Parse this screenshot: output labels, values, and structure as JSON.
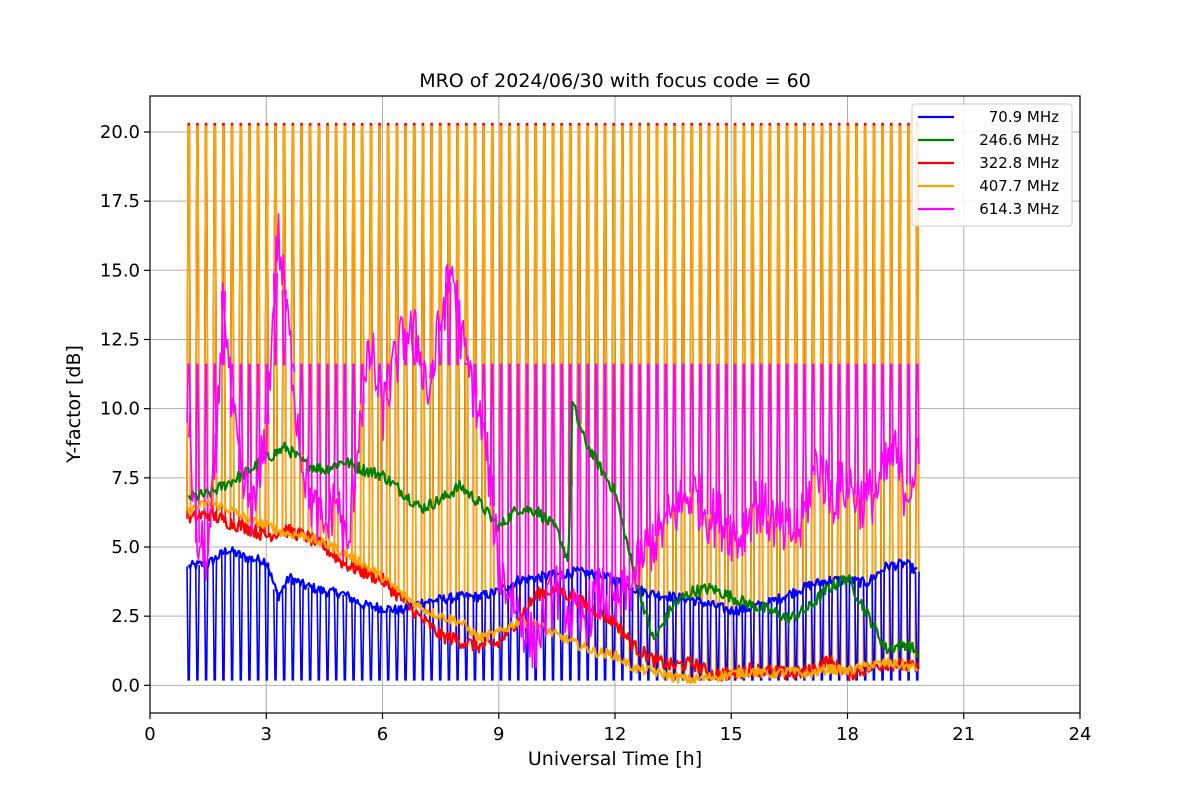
{
  "chart_data": {
    "type": "line",
    "title": "MRO of 2024/06/30 with focus code = 60",
    "xlabel": "Universal Time [h]",
    "ylabel": "Y-factor [dB]",
    "xlim": [
      0,
      24
    ],
    "ylim": [
      -1.0,
      21.3
    ],
    "xticks": [
      0,
      3,
      6,
      9,
      12,
      15,
      18,
      21,
      24
    ],
    "xtick_labels": [
      "0",
      "3",
      "6",
      "9",
      "12",
      "15",
      "18",
      "21",
      "24"
    ],
    "yticks": [
      0.0,
      2.5,
      5.0,
      7.5,
      10.0,
      12.5,
      15.0,
      17.5,
      20.0
    ],
    "ytick_labels": [
      "0.0",
      "2.5",
      "5.0",
      "7.5",
      "10.0",
      "12.5",
      "15.0",
      "17.5",
      "20.0"
    ],
    "grid": true,
    "legend_position": "top-right",
    "calibration_spikes": {
      "start_h": 1.0,
      "end_h": 19.8,
      "count": 85,
      "peak_values": {
        "70.9 MHz": 0.2,
        "246.6 MHz": 20.2,
        "322.8 MHz": 20.3,
        "407.7 MHz": 20.2,
        "614.3 MHz": 11.6
      }
    },
    "series": [
      {
        "name": " 70.9 MHz",
        "color": "#0000ff",
        "x": [
          1.0,
          1.5,
          2.0,
          2.5,
          3.0,
          3.3,
          3.6,
          4.0,
          4.5,
          5.0,
          5.5,
          6.0,
          6.5,
          7.0,
          7.5,
          8.0,
          8.5,
          9.0,
          9.5,
          10.0,
          10.5,
          11.0,
          11.5,
          12.0,
          12.5,
          13.0,
          13.5,
          14.0,
          14.5,
          15.0,
          15.5,
          16.0,
          16.5,
          17.0,
          17.5,
          18.0,
          18.5,
          19.0,
          19.5,
          19.8
        ],
        "y": [
          4.3,
          4.4,
          4.9,
          4.6,
          4.5,
          3.2,
          3.9,
          3.6,
          3.4,
          3.3,
          2.9,
          2.8,
          2.7,
          3.0,
          3.1,
          3.2,
          3.2,
          3.4,
          3.8,
          3.9,
          4.0,
          4.1,
          4.0,
          3.8,
          3.5,
          3.3,
          3.2,
          3.1,
          2.9,
          2.7,
          2.8,
          3.0,
          3.3,
          3.6,
          3.8,
          3.8,
          3.7,
          4.3,
          4.4,
          4.1
        ]
      },
      {
        "name": "246.6 MHz",
        "color": "#008000",
        "x": [
          1.0,
          1.5,
          2.0,
          2.5,
          3.0,
          3.5,
          4.0,
          4.5,
          5.0,
          5.5,
          6.0,
          6.5,
          7.0,
          7.5,
          8.0,
          8.5,
          9.0,
          9.5,
          10.0,
          10.5,
          10.8,
          10.9,
          11.2,
          11.6,
          12.0,
          12.5,
          13.0,
          13.5,
          14.0,
          14.5,
          15.0,
          15.5,
          16.0,
          16.5,
          17.0,
          17.5,
          18.0,
          18.5,
          19.0,
          19.5,
          19.8
        ],
        "y": [
          6.8,
          6.9,
          7.3,
          7.7,
          8.2,
          8.6,
          8.0,
          7.8,
          8.1,
          7.8,
          7.6,
          7.0,
          6.4,
          6.7,
          7.2,
          6.6,
          5.7,
          6.4,
          6.3,
          5.6,
          4.5,
          10.2,
          8.9,
          7.9,
          7.0,
          4.0,
          1.6,
          2.9,
          3.4,
          3.5,
          3.2,
          2.9,
          2.7,
          2.4,
          2.8,
          3.5,
          3.9,
          2.6,
          1.3,
          1.5,
          1.2
        ]
      },
      {
        "name": "322.8 MHz",
        "color": "#ff0000",
        "x": [
          1.0,
          1.5,
          2.0,
          2.5,
          3.0,
          3.5,
          4.0,
          4.5,
          5.0,
          5.5,
          6.0,
          6.5,
          7.0,
          7.5,
          8.0,
          8.5,
          9.0,
          9.5,
          10.0,
          10.5,
          11.0,
          11.5,
          12.0,
          12.5,
          13.0,
          13.5,
          14.0,
          14.5,
          15.0,
          15.5,
          16.0,
          16.5,
          17.0,
          17.5,
          18.0,
          18.5,
          19.0,
          19.5,
          19.8
        ],
        "y": [
          6.0,
          6.2,
          5.9,
          5.7,
          5.4,
          5.6,
          5.4,
          5.0,
          4.4,
          4.1,
          3.8,
          3.1,
          2.4,
          1.8,
          1.6,
          1.4,
          1.5,
          2.4,
          3.3,
          3.5,
          3.1,
          2.7,
          2.3,
          1.4,
          0.9,
          0.7,
          0.8,
          0.4,
          0.4,
          0.6,
          0.5,
          0.4,
          0.5,
          0.9,
          0.4,
          0.6,
          0.8,
          0.7,
          0.6
        ]
      },
      {
        "name": "407.7 MHz",
        "color": "#ffa500",
        "x": [
          1.0,
          1.5,
          2.0,
          2.5,
          3.0,
          3.5,
          4.0,
          4.5,
          5.0,
          5.5,
          6.0,
          6.5,
          7.0,
          7.5,
          8.0,
          8.5,
          9.0,
          9.5,
          10.0,
          10.5,
          11.0,
          11.5,
          12.0,
          12.5,
          13.0,
          13.5,
          14.0,
          14.5,
          15.0,
          15.5,
          16.0,
          16.5,
          17.0,
          17.5,
          18.0,
          18.5,
          19.0,
          19.5,
          19.8
        ],
        "y": [
          6.3,
          6.6,
          6.4,
          6.0,
          5.8,
          5.5,
          5.4,
          5.1,
          4.8,
          4.4,
          3.9,
          3.3,
          2.8,
          2.5,
          2.3,
          1.7,
          1.9,
          2.3,
          2.2,
          1.8,
          1.5,
          1.2,
          1.1,
          0.6,
          0.5,
          0.3,
          0.2,
          0.3,
          0.4,
          0.5,
          0.4,
          0.5,
          0.4,
          0.6,
          0.5,
          0.7,
          0.8,
          0.7,
          0.6
        ]
      },
      {
        "name": "614.3 MHz",
        "color": "#ff00ff",
        "x": [
          1.0,
          1.2,
          1.5,
          1.7,
          1.9,
          2.1,
          2.4,
          2.7,
          3.0,
          3.3,
          3.6,
          3.9,
          4.2,
          4.5,
          4.8,
          5.1,
          5.4,
          5.7,
          6.0,
          6.3,
          6.6,
          6.9,
          7.2,
          7.5,
          7.8,
          8.1,
          8.4,
          8.7,
          9.0,
          9.3,
          9.6,
          9.9,
          10.2,
          10.5,
          10.8,
          11.1,
          11.4,
          11.7,
          12.0,
          12.4,
          12.8,
          13.2,
          13.6,
          14.0,
          14.4,
          14.8,
          15.2,
          15.6,
          16.0,
          16.4,
          16.8,
          17.2,
          17.6,
          18.0,
          18.4,
          18.8,
          19.2,
          19.5,
          19.8
        ],
        "y": [
          9.5,
          5.2,
          4.6,
          8.2,
          14.4,
          10.0,
          7.2,
          6.3,
          9.1,
          16.4,
          12.5,
          8.4,
          6.4,
          5.6,
          6.9,
          4.6,
          9.5,
          12.2,
          9.8,
          11.5,
          12.8,
          12.5,
          10.5,
          13.2,
          15.1,
          12.0,
          10.4,
          8.3,
          4.2,
          3.3,
          2.4,
          1.4,
          2.6,
          3.5,
          2.7,
          2.2,
          2.9,
          3.4,
          2.7,
          3.6,
          4.9,
          5.6,
          6.4,
          7.0,
          6.2,
          5.9,
          5.3,
          6.6,
          6.1,
          5.4,
          5.7,
          8.1,
          6.8,
          7.3,
          6.6,
          7.1,
          8.4,
          7.0,
          8.0
        ]
      }
    ]
  }
}
